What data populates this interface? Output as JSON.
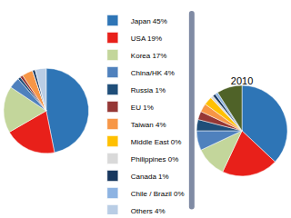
{
  "chart_data": [
    {
      "type": "pie",
      "categories": [
        "Japan 45%",
        "USA 19%",
        "Korea 17%",
        "China/HK 4%",
        "Russia 1%",
        "EU 1%",
        "Taiwan 4%",
        "Middle East 0%",
        "Philippines 0%",
        "Canada 1%",
        "Chile / Brazil 0%",
        "Others 4%"
      ],
      "values": [
        45,
        19,
        17,
        4,
        1,
        1,
        4,
        0,
        0,
        1,
        0,
        4
      ],
      "colors": [
        "#2e75b6",
        "#e8201a",
        "#c3d69b",
        "#4f81bd",
        "#1f4e79",
        "#953735",
        "#f79646",
        "#ffc000",
        "#d9d9d9",
        "#17375e",
        "#8db3e2",
        "#b9cde5"
      ],
      "legend": "center"
    },
    {
      "type": "pie",
      "title": "2010",
      "categories": [
        "Japan 45%",
        "USA 19%",
        "Korea 17%",
        "China/HK 4%",
        "Russia 1%",
        "EU 1%",
        "Taiwan 4%",
        "Middle East 0%",
        "Philippines 0%",
        "Canada 1%",
        "Chile / Brazil 0%",
        "Others 4%"
      ],
      "values": [
        37,
        20,
        11,
        7,
        4,
        3,
        3,
        3,
        1,
        1,
        1,
        9
      ],
      "colors": [
        "#2e75b6",
        "#e8201a",
        "#c3d69b",
        "#4f81bd",
        "#1f4e79",
        "#953735",
        "#f79646",
        "#ffc000",
        "#d9d9d9",
        "#17375e",
        "#8db3e2",
        "#4f6228"
      ]
    }
  ]
}
